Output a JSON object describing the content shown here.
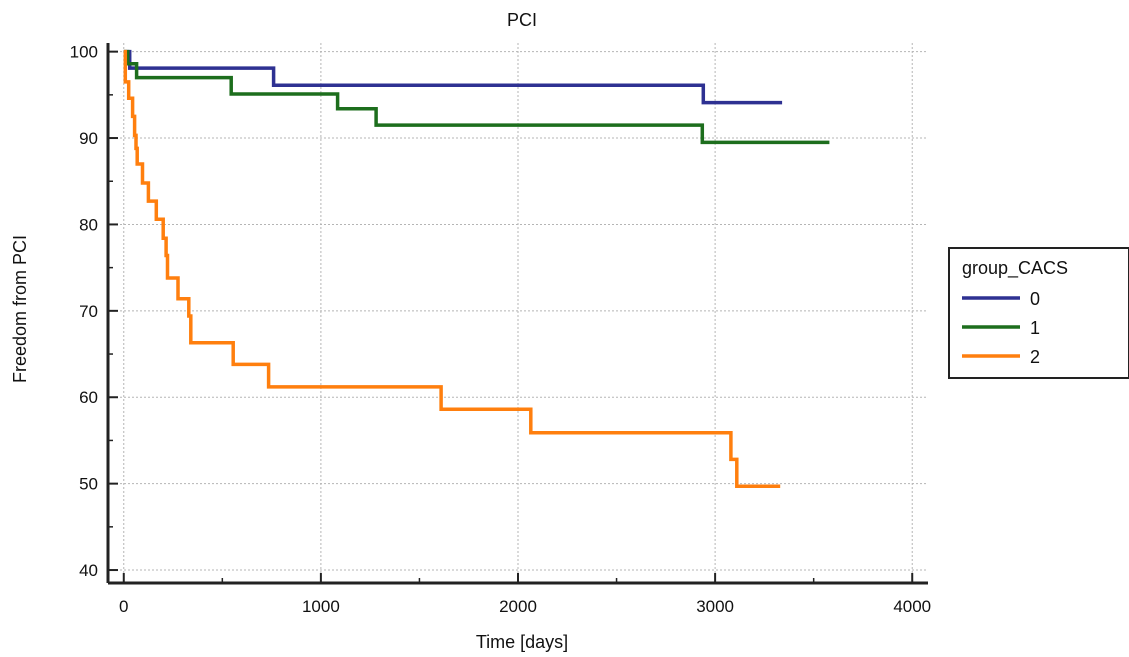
{
  "chart_data": {
    "type": "line",
    "step": true,
    "title": "PCI",
    "xlabel": "Time [days]",
    "ylabel": "Freedom from PCI",
    "xlim": [
      -80,
      4080
    ],
    "ylim": [
      38.5,
      101
    ],
    "xticks": [
      0,
      1000,
      2000,
      3000,
      4000
    ],
    "yticks": [
      40,
      50,
      60,
      70,
      80,
      90,
      100
    ],
    "grid": true,
    "legend": {
      "title": "group_CACS",
      "position": "right"
    },
    "series": [
      {
        "name": "0",
        "color": "#2e3192",
        "points": [
          [
            0,
            100
          ],
          [
            30,
            100
          ],
          [
            30,
            98.1
          ],
          [
            760,
            98.1
          ],
          [
            760,
            96.1
          ],
          [
            2940,
            96.1
          ],
          [
            2940,
            94.1
          ],
          [
            3340,
            94.1
          ]
        ]
      },
      {
        "name": "1",
        "color": "#1d6e1d",
        "points": [
          [
            0,
            100
          ],
          [
            20,
            100
          ],
          [
            20,
            98.6
          ],
          [
            65,
            98.6
          ],
          [
            65,
            97.0
          ],
          [
            545,
            97.0
          ],
          [
            545,
            95.1
          ],
          [
            1085,
            95.1
          ],
          [
            1085,
            93.4
          ],
          [
            1280,
            93.4
          ],
          [
            1280,
            91.5
          ],
          [
            2935,
            91.5
          ],
          [
            2935,
            89.5
          ],
          [
            3580,
            89.5
          ]
        ]
      },
      {
        "name": "2",
        "color": "#ff7f0e",
        "points": [
          [
            0,
            100
          ],
          [
            8,
            100
          ],
          [
            8,
            96.5
          ],
          [
            25,
            96.5
          ],
          [
            25,
            94.6
          ],
          [
            45,
            94.6
          ],
          [
            45,
            92.5
          ],
          [
            55,
            92.5
          ],
          [
            55,
            90.3
          ],
          [
            62,
            90.3
          ],
          [
            62,
            88.8
          ],
          [
            68,
            88.8
          ],
          [
            68,
            87.0
          ],
          [
            95,
            87.0
          ],
          [
            95,
            84.8
          ],
          [
            125,
            84.8
          ],
          [
            125,
            82.7
          ],
          [
            165,
            82.7
          ],
          [
            165,
            80.6
          ],
          [
            200,
            80.6
          ],
          [
            200,
            78.4
          ],
          [
            215,
            78.4
          ],
          [
            215,
            76.4
          ],
          [
            222,
            76.4
          ],
          [
            222,
            73.8
          ],
          [
            275,
            73.8
          ],
          [
            275,
            71.4
          ],
          [
            330,
            71.4
          ],
          [
            330,
            69.4
          ],
          [
            340,
            69.4
          ],
          [
            340,
            66.3
          ],
          [
            555,
            66.3
          ],
          [
            555,
            63.8
          ],
          [
            735,
            63.8
          ],
          [
            735,
            61.2
          ],
          [
            1610,
            61.2
          ],
          [
            1610,
            58.6
          ],
          [
            2065,
            58.6
          ],
          [
            2065,
            55.9
          ],
          [
            3080,
            55.9
          ],
          [
            3080,
            52.8
          ],
          [
            3110,
            52.8
          ],
          [
            3110,
            49.7
          ],
          [
            3330,
            49.7
          ]
        ]
      }
    ]
  }
}
